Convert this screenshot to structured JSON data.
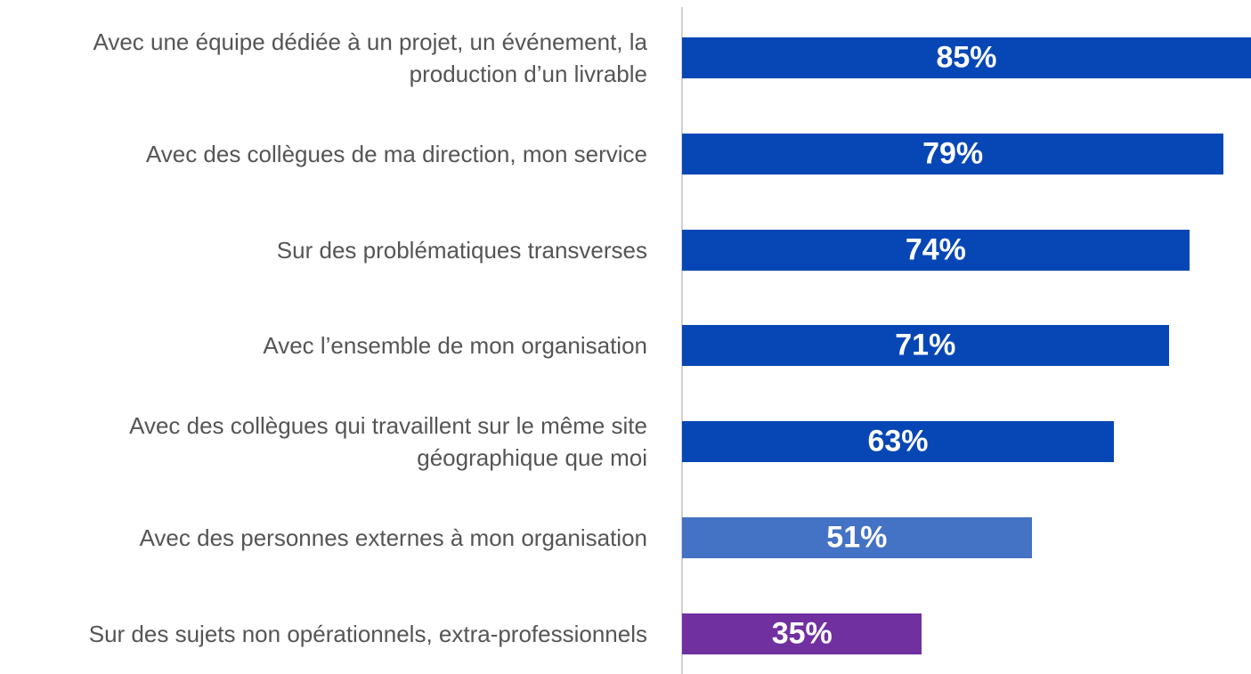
{
  "chart_data": {
    "type": "barh",
    "categories": [
      "Avec une équipe dédiée à un projet, un événement, la production d’un livrable",
      "Avec des collègues de ma direction, mon service",
      "Sur des problématiques transverses",
      "Avec l’ensemble de mon organisation",
      "Avec des collègues qui travaillent sur le même site géographique que moi",
      "Avec des personnes externes à mon organisation",
      "Sur des sujets non opérationnels, extra-professionnels"
    ],
    "values": [
      85,
      79,
      74,
      71,
      63,
      51,
      35
    ],
    "value_labels": [
      "85%",
      "79%",
      "74%",
      "71%",
      "63%",
      "51%",
      "35%"
    ],
    "colors": [
      "#0747b5",
      "#0747b5",
      "#0747b5",
      "#0747b5",
      "#0747b5",
      "#4472c4",
      "#7030a0"
    ],
    "xlim": [
      0,
      83
    ]
  }
}
